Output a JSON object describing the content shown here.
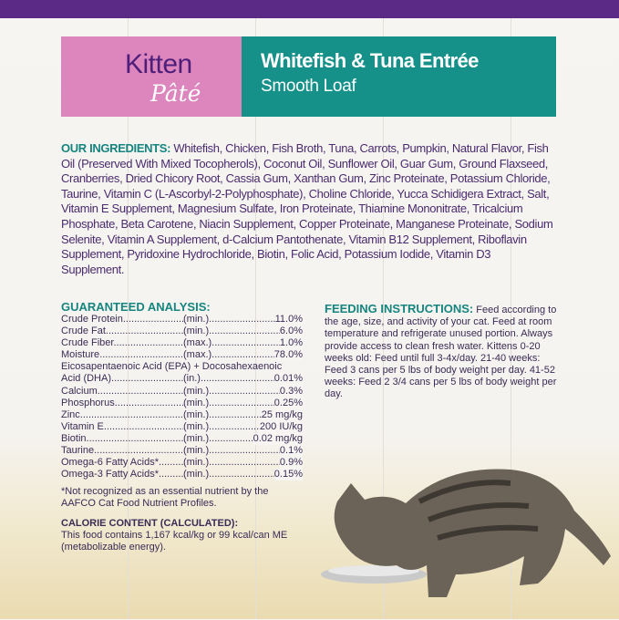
{
  "brand": {
    "line": "Kitten",
    "sub": "Pâté"
  },
  "product": {
    "title": "Whitefish & Tuna Entrée",
    "subtitle": "Smooth Loaf"
  },
  "colors": {
    "top_bar": "#5b2a86",
    "pink": "#dd85bd",
    "teal": "#16918a",
    "text": "#4a2b6e"
  },
  "ingredients": {
    "heading": "OUR INGREDIENTS:",
    "text": " Whitefish, Chicken, Fish Broth, Tuna, Carrots, Pumpkin, Natural Flavor, Fish Oil (Preserved With Mixed Tocopherols), Coconut Oil, Sunflower Oil, Guar Gum, Ground Flaxseed, Cranberries, Dried Chicory Root, Cassia Gum, Xanthan Gum, Zinc Proteinate, Potassium Chloride, Taurine, Vitamin C (L-Ascorbyl-2-Polyphosphate), Choline Chloride, Yucca Schidigera Extract, Salt, Vitamin E Supplement, Magnesium Sulfate, Iron Proteinate, Thiamine Mononitrate, Tricalcium Phosphate, Beta Carotene, Niacin Supplement, Copper Proteinate, Manganese Proteinate, Sodium Selenite, Vitamin A Supplement, d-Calcium Pantothenate, Vitamin B12 Supplement, Riboflavin Supplement, Pyridoxine Hydrochloride, Biotin, Folic Acid, Potassium Iodide, Vitamin D3 Supplement."
  },
  "analysis": {
    "heading": "GUARANTEED ANALYSIS:",
    "rows": [
      {
        "name": "Crude Protein",
        "q": "(min.)",
        "v": "11.0%"
      },
      {
        "name": "Crude Fat",
        "q": "(min.)",
        "v": "6.0%"
      },
      {
        "name": "Crude Fiber",
        "q": "(max.)",
        "v": "1.0%"
      },
      {
        "name": "Moisture",
        "q": "(max.)",
        "v": "78.0%"
      }
    ],
    "epa_line": "Eicosapentaenoic Acid (EPA) + Docosahexaenoic",
    "rows2": [
      {
        "name": "Acid (DHA)",
        "q": "(in.)",
        "v": "0.01%"
      },
      {
        "name": "Calcium",
        "q": "(min.)",
        "v": "0.3%"
      },
      {
        "name": "Phosphorus",
        "q": "(min.)",
        "v": "0.25%"
      },
      {
        "name": "Zinc",
        "q": "(min.)",
        "v": "25 mg/kg"
      },
      {
        "name": "Vitamin E",
        "q": "(min.)",
        "v": "200 IU/kg"
      },
      {
        "name": "Biotin",
        "q": "(min.)",
        "v": "0.02 mg/kg"
      },
      {
        "name": "Taurine",
        "q": "(min.)",
        "v": "0.1%"
      },
      {
        "name": "Omega-6 Fatty Acids*",
        "q": "(min.)",
        "v": "0.9%"
      },
      {
        "name": "Omega-3 Fatty Acids*",
        "q": "(min.)",
        "v": "0.15%"
      }
    ],
    "note": "*Not recognized as an essential nutrient by the AAFCO Cat Food Nutrient Profiles.",
    "calorie_heading": "CALORIE CONTENT (CALCULATED):",
    "calorie_text": "This food contains 1,167 kcal/kg or 99 kcal/can ME (metabolizable energy)."
  },
  "feeding": {
    "heading": "FEEDING INSTRUCTIONS:",
    "text": " Feed according to the age, size, and activity of your cat. Feed at room temperature and refrigerate unused portion. Always provide access to clean fresh water. Kittens 0-20 weeks old: Feed until full 3-4x/day. 21-40 weeks: Feed 3 cans per 5 lbs of body weight per day. 41-52 weeks: Feed 2 3/4 cans per 5 lbs of body weight per day."
  }
}
